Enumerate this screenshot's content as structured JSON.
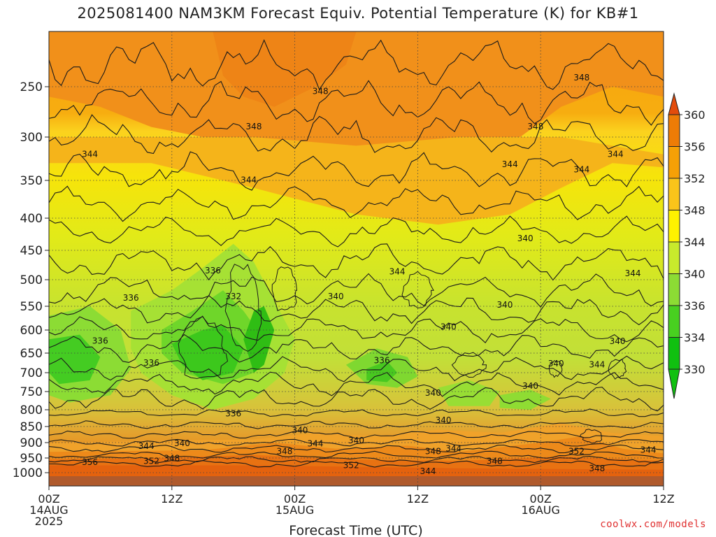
{
  "title": "2025081400 NAM3KM Forecast Equiv. Potential Temperature (K) for KB#1",
  "footer": "coolwx.com/models",
  "chart_data": {
    "type": "heatmap",
    "title": "2025081400 NAM3KM Forecast Equiv. Potential Temperature (K) for KB#1",
    "xlabel": "Forecast Time (UTC)",
    "ylabel": "",
    "x_ticks": [
      {
        "hours": 0,
        "lines": [
          "00Z",
          "14AUG",
          "2025"
        ]
      },
      {
        "hours": 12,
        "lines": [
          "12Z"
        ]
      },
      {
        "hours": 24,
        "lines": [
          "00Z",
          "15AUG"
        ]
      },
      {
        "hours": 36,
        "lines": [
          "12Z"
        ]
      },
      {
        "hours": 48,
        "lines": [
          "00Z",
          "16AUG"
        ]
      },
      {
        "hours": 60,
        "lines": [
          "12Z"
        ]
      }
    ],
    "xlim": [
      0,
      60
    ],
    "y_ticks": [
      250,
      300,
      350,
      400,
      450,
      500,
      550,
      600,
      650,
      700,
      750,
      800,
      850,
      900,
      950,
      1000
    ],
    "ylim": [
      200,
      1050
    ],
    "y_scale": "pressure (hPa), reversed",
    "colorbar": {
      "labels": [
        360,
        356,
        352,
        348,
        344,
        340,
        336,
        334,
        330
      ],
      "colors": [
        "#e0500a",
        "#ee7c06",
        "#f6a006",
        "#fac41a",
        "#fef200",
        "#c8ea2c",
        "#8cdc34",
        "#48d020",
        "#10c010"
      ],
      "extend_top_color": "#e34c0c",
      "extend_bottom_color": "#10c010"
    },
    "contour_labels": [
      {
        "t": 4,
        "p": 320,
        "v": "344"
      },
      {
        "t": 26.5,
        "p": 255,
        "v": "348"
      },
      {
        "t": 20,
        "p": 290,
        "v": "348"
      },
      {
        "t": 47.5,
        "p": 290,
        "v": "348"
      },
      {
        "t": 52,
        "p": 242,
        "v": "348"
      },
      {
        "t": 19.5,
        "p": 350,
        "v": "344"
      },
      {
        "t": 45,
        "p": 332,
        "v": "344"
      },
      {
        "t": 52,
        "p": 338,
        "v": "344"
      },
      {
        "t": 55.3,
        "p": 320,
        "v": "344"
      },
      {
        "t": 46.5,
        "p": 432,
        "v": "340"
      },
      {
        "t": 34,
        "p": 487,
        "v": "344"
      },
      {
        "t": 57,
        "p": 490,
        "v": "344"
      },
      {
        "t": 16,
        "p": 485,
        "v": "336"
      },
      {
        "t": 8,
        "p": 535,
        "v": "336"
      },
      {
        "t": 18,
        "p": 532,
        "v": "332"
      },
      {
        "t": 28,
        "p": 532,
        "v": "340"
      },
      {
        "t": 44.5,
        "p": 548,
        "v": "340"
      },
      {
        "t": 39,
        "p": 594,
        "v": "340"
      },
      {
        "t": 5,
        "p": 624,
        "v": "336"
      },
      {
        "t": 10,
        "p": 676,
        "v": "336"
      },
      {
        "t": 32.5,
        "p": 670,
        "v": "336"
      },
      {
        "t": 55.5,
        "p": 625,
        "v": "340"
      },
      {
        "t": 49.5,
        "p": 678,
        "v": "340"
      },
      {
        "t": 53.5,
        "p": 680,
        "v": "344"
      },
      {
        "t": 47,
        "p": 736,
        "v": "340"
      },
      {
        "t": 37.5,
        "p": 755,
        "v": "340"
      },
      {
        "t": 18,
        "p": 812,
        "v": "336"
      },
      {
        "t": 38.5,
        "p": 832,
        "v": "340"
      },
      {
        "t": 24.5,
        "p": 863,
        "v": "340"
      },
      {
        "t": 30,
        "p": 895,
        "v": "340"
      },
      {
        "t": 26,
        "p": 905,
        "v": "344"
      },
      {
        "t": 9.5,
        "p": 913,
        "v": "344"
      },
      {
        "t": 13,
        "p": 903,
        "v": "340"
      },
      {
        "t": 39.5,
        "p": 920,
        "v": "344"
      },
      {
        "t": 37.5,
        "p": 930,
        "v": "348"
      },
      {
        "t": 23,
        "p": 930,
        "v": "348"
      },
      {
        "t": 12,
        "p": 952,
        "v": "348"
      },
      {
        "t": 10,
        "p": 962,
        "v": "352"
      },
      {
        "t": 4,
        "p": 966,
        "v": "356"
      },
      {
        "t": 29.5,
        "p": 976,
        "v": "352"
      },
      {
        "t": 37,
        "p": 996,
        "v": "344"
      },
      {
        "t": 43.5,
        "p": 962,
        "v": "348"
      },
      {
        "t": 51.5,
        "p": 930,
        "v": "352"
      },
      {
        "t": 53.5,
        "p": 987,
        "v": "348"
      },
      {
        "t": 58.5,
        "p": 925,
        "v": "344"
      }
    ]
  }
}
